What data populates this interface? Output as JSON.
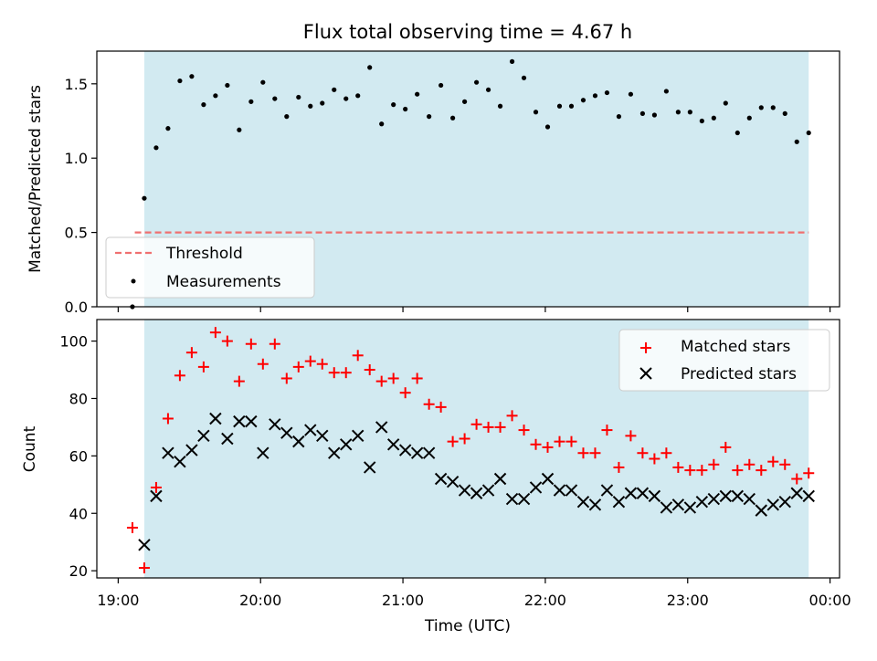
{
  "figure": {
    "title": "Flux total observing time = 4.67 h",
    "xlabel": "Time (UTC)",
    "xticks": [
      {
        "t": 0,
        "label": "19:00"
      },
      {
        "t": 60,
        "label": "20:00"
      },
      {
        "t": 120,
        "label": "21:00"
      },
      {
        "t": 180,
        "label": "22:00"
      },
      {
        "t": 240,
        "label": "23:00"
      },
      {
        "t": 300,
        "label": "00:00"
      }
    ],
    "xlim_minutes_after_19_00": [
      -9,
      304
    ],
    "observing_window_minutes_after_19_00": [
      11,
      291
    ],
    "observing_window_color": "#add8e6"
  },
  "chart_data": [
    {
      "type": "scatter",
      "ylabel": "Matched/Predicted stars",
      "ylim": [
        0,
        1.72
      ],
      "yticks": [
        0.0,
        0.5,
        1.0,
        1.5
      ],
      "ytick_labels": [
        "0.0",
        "0.5",
        "1.0",
        "1.5"
      ],
      "legend": {
        "placement": "lower-left",
        "entries": [
          "Threshold",
          "Measurements"
        ]
      },
      "threshold": {
        "name": "Threshold",
        "value": 0.5,
        "x_range": [
          7,
          291
        ],
        "color": "#f07070",
        "style": "dashed"
      },
      "series": [
        {
          "name": "Measurements",
          "color": "#000000",
          "marker": "dot",
          "x": [
            6,
            11,
            16,
            21,
            26,
            31,
            36,
            41,
            46,
            51,
            56,
            61,
            66,
            71,
            76,
            81,
            86,
            91,
            96,
            101,
            106,
            111,
            116,
            121,
            126,
            131,
            136,
            141,
            146,
            151,
            156,
            161,
            166,
            171,
            176,
            181,
            186,
            191,
            196,
            201,
            206,
            211,
            216,
            221,
            226,
            231,
            236,
            241,
            246,
            251,
            256,
            261,
            266,
            271,
            276,
            281,
            286,
            291
          ],
          "y": [
            0.0,
            0.73,
            1.07,
            1.2,
            1.52,
            1.55,
            1.36,
            1.42,
            1.49,
            1.19,
            1.38,
            1.51,
            1.4,
            1.28,
            1.41,
            1.35,
            1.37,
            1.46,
            1.4,
            1.42,
            1.61,
            1.23,
            1.36,
            1.33,
            1.43,
            1.28,
            1.49,
            1.27,
            1.38,
            1.51,
            1.46,
            1.35,
            1.65,
            1.54,
            1.31,
            1.21,
            1.35,
            1.35,
            1.39,
            1.42,
            1.44,
            1.28,
            1.43,
            1.3,
            1.29,
            1.45,
            1.31,
            1.31,
            1.25,
            1.27,
            1.37,
            1.17,
            1.27,
            1.34,
            1.34,
            1.3,
            1.11,
            1.17
          ]
        }
      ]
    },
    {
      "type": "scatter",
      "ylabel": "Count",
      "ylim": [
        17.5,
        107.5
      ],
      "yticks": [
        20,
        40,
        60,
        80,
        100
      ],
      "ytick_labels": [
        "20",
        "40",
        "60",
        "80",
        "100"
      ],
      "legend": {
        "placement": "top-right",
        "entries": [
          "Matched stars",
          "Predicted stars"
        ]
      },
      "series": [
        {
          "name": "Matched stars",
          "color": "#ff0000",
          "marker": "plus",
          "x": [
            6,
            11,
            16,
            21,
            26,
            31,
            36,
            41,
            46,
            51,
            56,
            61,
            66,
            71,
            76,
            81,
            86,
            91,
            96,
            101,
            106,
            111,
            116,
            121,
            126,
            131,
            136,
            141,
            146,
            151,
            156,
            161,
            166,
            171,
            176,
            181,
            186,
            191,
            196,
            201,
            206,
            211,
            216,
            221,
            226,
            231,
            236,
            241,
            246,
            251,
            256,
            261,
            266,
            271,
            276,
            281,
            286,
            291
          ],
          "y": [
            35,
            21,
            49,
            73,
            88,
            96,
            91,
            103,
            100,
            86,
            99,
            92,
            99,
            87,
            91,
            93,
            92,
            89,
            89,
            95,
            90,
            86,
            87,
            82,
            87,
            78,
            77,
            65,
            66,
            71,
            70,
            70,
            74,
            69,
            64,
            63,
            65,
            65,
            61,
            61,
            69,
            56,
            67,
            61,
            59,
            61,
            56,
            55,
            55,
            57,
            63,
            55,
            57,
            55,
            58,
            57,
            52,
            54
          ]
        },
        {
          "name": "Predicted stars",
          "color": "#000000",
          "marker": "x",
          "x": [
            11,
            16,
            21,
            26,
            31,
            36,
            41,
            46,
            51,
            56,
            61,
            66,
            71,
            76,
            81,
            86,
            91,
            96,
            101,
            106,
            111,
            116,
            121,
            126,
            131,
            136,
            141,
            146,
            151,
            156,
            161,
            166,
            171,
            176,
            181,
            186,
            191,
            196,
            201,
            206,
            211,
            216,
            221,
            226,
            231,
            236,
            241,
            246,
            251,
            256,
            261,
            266,
            271,
            276,
            281,
            286,
            291
          ],
          "y": [
            29,
            46,
            61,
            58,
            62,
            67,
            73,
            66,
            72,
            72,
            61,
            71,
            68,
            65,
            69,
            67,
            61,
            64,
            67,
            56,
            70,
            64,
            62,
            61,
            61,
            52,
            51,
            48,
            47,
            48,
            52,
            45,
            45,
            49,
            52,
            48,
            48,
            44,
            43,
            48,
            44,
            47,
            47,
            46,
            42,
            43,
            42,
            44,
            45,
            46,
            46,
            45,
            41,
            43,
            44,
            47,
            46
          ]
        }
      ]
    }
  ]
}
